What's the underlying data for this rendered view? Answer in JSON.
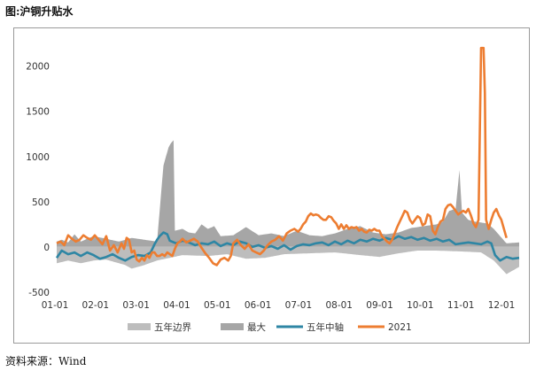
{
  "figure": {
    "title": "图:沪铜升贴水",
    "source": "资料来源：Wind"
  },
  "chart_data": {
    "type": "line",
    "title": "",
    "xlabel": "",
    "ylabel": "",
    "ylim": [
      -500,
      2300
    ],
    "yticks": [
      -500,
      0,
      500,
      1000,
      1500,
      2000
    ],
    "xticks": [
      "01-01",
      "02-01",
      "03-01",
      "04-01",
      "05-01",
      "06-01",
      "07-01",
      "08-01",
      "09-01",
      "10-01",
      "11-01",
      "12-01"
    ],
    "xrange": [
      1,
      365
    ],
    "legend_position": "bottom",
    "colors": {
      "band_light": "#bdbdbd",
      "band_dark": "#a6a6a6",
      "axis": "#bfbfbf",
      "mid": "#2e86a4",
      "y2021": "#ed7d31"
    },
    "series": [
      {
        "name": "五年边界",
        "kind": "band-low",
        "points": [
          [
            1,
            -180
          ],
          [
            10,
            -150
          ],
          [
            20,
            -180
          ],
          [
            30,
            -150
          ],
          [
            40,
            -140
          ],
          [
            45,
            -160
          ],
          [
            55,
            -200
          ],
          [
            60,
            -240
          ],
          [
            70,
            -200
          ],
          [
            80,
            -150
          ],
          [
            90,
            -120
          ],
          [
            100,
            -90
          ],
          [
            120,
            -100
          ],
          [
            135,
            -80
          ],
          [
            150,
            -130
          ],
          [
            165,
            -120
          ],
          [
            180,
            -80
          ],
          [
            200,
            -70
          ],
          [
            220,
            -60
          ],
          [
            240,
            -90
          ],
          [
            255,
            -110
          ],
          [
            270,
            -70
          ],
          [
            285,
            -40
          ],
          [
            300,
            -40
          ],
          [
            320,
            -50
          ],
          [
            335,
            -60
          ],
          [
            345,
            -150
          ],
          [
            355,
            -300
          ],
          [
            365,
            -220
          ]
        ]
      },
      {
        "name": "最大",
        "kind": "band-high",
        "points": [
          [
            1,
            60
          ],
          [
            5,
            80
          ],
          [
            10,
            50
          ],
          [
            15,
            140
          ],
          [
            20,
            60
          ],
          [
            30,
            120
          ],
          [
            40,
            90
          ],
          [
            50,
            60
          ],
          [
            60,
            100
          ],
          [
            70,
            80
          ],
          [
            80,
            60
          ],
          [
            85,
            900
          ],
          [
            87,
            1000
          ],
          [
            89,
            1100
          ],
          [
            91,
            1150
          ],
          [
            93,
            1180
          ],
          [
            94,
            180
          ],
          [
            100,
            200
          ],
          [
            105,
            160
          ],
          [
            110,
            150
          ],
          [
            115,
            250
          ],
          [
            120,
            200
          ],
          [
            125,
            230
          ],
          [
            130,
            120
          ],
          [
            140,
            130
          ],
          [
            150,
            220
          ],
          [
            160,
            130
          ],
          [
            170,
            150
          ],
          [
            180,
            120
          ],
          [
            190,
            180
          ],
          [
            200,
            130
          ],
          [
            210,
            120
          ],
          [
            220,
            150
          ],
          [
            230,
            200
          ],
          [
            240,
            230
          ],
          [
            250,
            160
          ],
          [
            260,
            140
          ],
          [
            270,
            160
          ],
          [
            280,
            210
          ],
          [
            290,
            230
          ],
          [
            300,
            250
          ],
          [
            305,
            280
          ],
          [
            310,
            400
          ],
          [
            315,
            420
          ],
          [
            318,
            850
          ],
          [
            320,
            380
          ],
          [
            325,
            300
          ],
          [
            330,
            280
          ],
          [
            340,
            260
          ],
          [
            345,
            200
          ],
          [
            350,
            120
          ],
          [
            355,
            40
          ],
          [
            365,
            50
          ]
        ]
      },
      {
        "name": "五年中轴",
        "kind": "line",
        "points": [
          [
            1,
            -120
          ],
          [
            5,
            -40
          ],
          [
            10,
            -80
          ],
          [
            15,
            -60
          ],
          [
            20,
            -100
          ],
          [
            25,
            -60
          ],
          [
            30,
            -90
          ],
          [
            35,
            -130
          ],
          [
            40,
            -110
          ],
          [
            45,
            -80
          ],
          [
            50,
            -120
          ],
          [
            55,
            -150
          ],
          [
            60,
            -110
          ],
          [
            65,
            -90
          ],
          [
            70,
            -100
          ],
          [
            75,
            -60
          ],
          [
            78,
            30
          ],
          [
            80,
            80
          ],
          [
            82,
            120
          ],
          [
            85,
            160
          ],
          [
            88,
            140
          ],
          [
            90,
            70
          ],
          [
            95,
            40
          ],
          [
            100,
            70
          ],
          [
            105,
            50
          ],
          [
            110,
            20
          ],
          [
            115,
            40
          ],
          [
            120,
            30
          ],
          [
            125,
            60
          ],
          [
            130,
            10
          ],
          [
            135,
            40
          ],
          [
            140,
            20
          ],
          [
            145,
            60
          ],
          [
            150,
            40
          ],
          [
            155,
            0
          ],
          [
            160,
            20
          ],
          [
            165,
            -10
          ],
          [
            170,
            10
          ],
          [
            175,
            -20
          ],
          [
            180,
            20
          ],
          [
            185,
            -30
          ],
          [
            190,
            10
          ],
          [
            195,
            30
          ],
          [
            200,
            20
          ],
          [
            205,
            40
          ],
          [
            210,
            50
          ],
          [
            215,
            20
          ],
          [
            220,
            60
          ],
          [
            225,
            30
          ],
          [
            230,
            70
          ],
          [
            235,
            40
          ],
          [
            240,
            80
          ],
          [
            245,
            60
          ],
          [
            250,
            90
          ],
          [
            255,
            70
          ],
          [
            260,
            100
          ],
          [
            265,
            80
          ],
          [
            270,
            120
          ],
          [
            275,
            90
          ],
          [
            280,
            110
          ],
          [
            285,
            80
          ],
          [
            290,
            100
          ],
          [
            295,
            70
          ],
          [
            300,
            90
          ],
          [
            305,
            60
          ],
          [
            310,
            80
          ],
          [
            315,
            30
          ],
          [
            320,
            40
          ],
          [
            325,
            50
          ],
          [
            330,
            40
          ],
          [
            335,
            30
          ],
          [
            340,
            60
          ],
          [
            343,
            40
          ],
          [
            346,
            -90
          ],
          [
            350,
            -150
          ],
          [
            355,
            -110
          ],
          [
            360,
            -130
          ],
          [
            365,
            -120
          ]
        ]
      },
      {
        "name": "2021",
        "kind": "line",
        "points": [
          [
            1,
            40
          ],
          [
            4,
            60
          ],
          [
            7,
            20
          ],
          [
            10,
            130
          ],
          [
            13,
            90
          ],
          [
            16,
            60
          ],
          [
            19,
            80
          ],
          [
            22,
            130
          ],
          [
            25,
            100
          ],
          [
            28,
            80
          ],
          [
            31,
            130
          ],
          [
            34,
            80
          ],
          [
            37,
            30
          ],
          [
            40,
            120
          ],
          [
            43,
            -40
          ],
          [
            46,
            20
          ],
          [
            49,
            -60
          ],
          [
            52,
            40
          ],
          [
            54,
            -20
          ],
          [
            56,
            100
          ],
          [
            58,
            80
          ],
          [
            60,
            -60
          ],
          [
            62,
            -40
          ],
          [
            64,
            -140
          ],
          [
            66,
            -160
          ],
          [
            68,
            -120
          ],
          [
            70,
            -150
          ],
          [
            72,
            -90
          ],
          [
            74,
            -120
          ],
          [
            76,
            -60
          ],
          [
            78,
            -60
          ],
          [
            80,
            -100
          ],
          [
            82,
            -100
          ],
          [
            84,
            -80
          ],
          [
            86,
            -100
          ],
          [
            88,
            -60
          ],
          [
            90,
            -80
          ],
          [
            92,
            -100
          ],
          [
            94,
            -20
          ],
          [
            96,
            40
          ],
          [
            98,
            60
          ],
          [
            100,
            90
          ],
          [
            103,
            50
          ],
          [
            106,
            70
          ],
          [
            109,
            90
          ],
          [
            112,
            60
          ],
          [
            115,
            -10
          ],
          [
            118,
            -70
          ],
          [
            121,
            -120
          ],
          [
            124,
            -180
          ],
          [
            127,
            -200
          ],
          [
            130,
            -140
          ],
          [
            133,
            -120
          ],
          [
            136,
            -150
          ],
          [
            138,
            -100
          ],
          [
            140,
            40
          ],
          [
            143,
            80
          ],
          [
            146,
            20
          ],
          [
            149,
            -20
          ],
          [
            152,
            30
          ],
          [
            155,
            -40
          ],
          [
            158,
            -60
          ],
          [
            161,
            -80
          ],
          [
            164,
            -40
          ],
          [
            167,
            20
          ],
          [
            170,
            60
          ],
          [
            173,
            80
          ],
          [
            176,
            120
          ],
          [
            179,
            70
          ],
          [
            182,
            150
          ],
          [
            185,
            180
          ],
          [
            188,
            200
          ],
          [
            191,
            170
          ],
          [
            193,
            200
          ],
          [
            195,
            250
          ],
          [
            197,
            280
          ],
          [
            199,
            340
          ],
          [
            201,
            370
          ],
          [
            203,
            350
          ],
          [
            205,
            360
          ],
          [
            207,
            350
          ],
          [
            209,
            320
          ],
          [
            211,
            300
          ],
          [
            213,
            300
          ],
          [
            215,
            340
          ],
          [
            217,
            330
          ],
          [
            219,
            290
          ],
          [
            221,
            260
          ],
          [
            223,
            200
          ],
          [
            225,
            250
          ],
          [
            227,
            200
          ],
          [
            229,
            240
          ],
          [
            231,
            200
          ],
          [
            233,
            220
          ],
          [
            235,
            210
          ],
          [
            237,
            220
          ],
          [
            239,
            180
          ],
          [
            241,
            200
          ],
          [
            243,
            170
          ],
          [
            245,
            160
          ],
          [
            247,
            190
          ],
          [
            249,
            180
          ],
          [
            251,
            200
          ],
          [
            253,
            180
          ],
          [
            255,
            180
          ],
          [
            257,
            120
          ],
          [
            259,
            90
          ],
          [
            261,
            60
          ],
          [
            263,
            40
          ],
          [
            265,
            80
          ],
          [
            267,
            150
          ],
          [
            269,
            220
          ],
          [
            271,
            280
          ],
          [
            273,
            340
          ],
          [
            275,
            400
          ],
          [
            277,
            380
          ],
          [
            279,
            300
          ],
          [
            281,
            260
          ],
          [
            283,
            300
          ],
          [
            285,
            340
          ],
          [
            287,
            320
          ],
          [
            289,
            240
          ],
          [
            291,
            260
          ],
          [
            293,
            360
          ],
          [
            295,
            340
          ],
          [
            297,
            180
          ],
          [
            299,
            140
          ],
          [
            301,
            220
          ],
          [
            303,
            280
          ],
          [
            305,
            300
          ],
          [
            307,
            420
          ],
          [
            309,
            460
          ],
          [
            311,
            470
          ],
          [
            313,
            440
          ],
          [
            315,
            400
          ],
          [
            317,
            360
          ],
          [
            319,
            380
          ],
          [
            321,
            400
          ],
          [
            323,
            380
          ],
          [
            325,
            420
          ],
          [
            327,
            350
          ],
          [
            329,
            260
          ],
          [
            331,
            220
          ],
          [
            333,
            300
          ],
          [
            335,
            2200
          ],
          [
            337,
            2200
          ],
          [
            338,
            1700
          ],
          [
            339,
            300
          ],
          [
            341,
            200
          ],
          [
            343,
            300
          ],
          [
            345,
            380
          ],
          [
            347,
            420
          ],
          [
            349,
            350
          ],
          [
            351,
            300
          ],
          [
            353,
            200
          ],
          [
            355,
            100
          ]
        ]
      }
    ]
  }
}
